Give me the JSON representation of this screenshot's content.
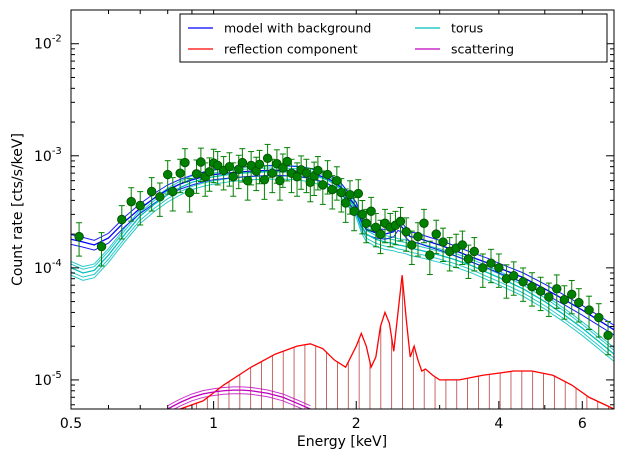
{
  "chart_data": {
    "type": "line",
    "title": "",
    "xlabel": "Energy [keV]",
    "ylabel": "Count rate [cts/s/keV]",
    "x_scale": "log",
    "y_scale": "log",
    "xlim": [
      0.5,
      7.0
    ],
    "ylim": [
      5.5e-06,
      0.02
    ],
    "grid": false,
    "legend": {
      "placement": "top-right",
      "columns": 2
    },
    "x_ticks": [
      {
        "value": 0.5,
        "label": "0.5"
      },
      {
        "value": 1,
        "label": "1"
      },
      {
        "value": 2,
        "label": "2"
      },
      {
        "value": 4,
        "label": "4"
      },
      {
        "value": 6,
        "label": "6"
      }
    ],
    "y_ticks": [
      {
        "value": 1e-05,
        "base": "10",
        "exp": "-5"
      },
      {
        "value": 0.0001,
        "base": "10",
        "exp": "-4"
      },
      {
        "value": 0.001,
        "base": "10",
        "exp": "-3"
      },
      {
        "value": 0.01,
        "base": "10",
        "exp": "-2"
      }
    ],
    "series": [
      {
        "name": "model with background",
        "color": "#0000ff",
        "x": [
          0.5,
          0.53,
          0.56,
          0.6,
          0.65,
          0.7,
          0.75,
          0.8,
          0.85,
          0.9,
          0.95,
          1.0,
          1.1,
          1.2,
          1.3,
          1.4,
          1.5,
          1.6,
          1.7,
          1.75,
          1.8,
          1.85,
          1.9,
          1.95,
          2.0,
          2.05,
          2.1,
          2.2,
          2.3,
          2.4,
          2.45,
          2.5,
          2.55,
          2.6,
          2.7,
          2.8,
          3.0,
          3.2,
          3.5,
          3.8,
          4.0,
          4.5,
          5.0,
          5.5,
          6.0,
          6.5,
          7.0
        ],
        "values": [
          0.00018,
          0.00017,
          0.00016,
          0.000185,
          0.00026,
          0.00034,
          0.00042,
          0.0005,
          0.00056,
          0.00061,
          0.00065,
          0.00068,
          0.00071,
          0.00073,
          0.00074,
          0.00074,
          0.00073,
          0.0007,
          0.00065,
          0.00062,
          0.00058,
          0.00053,
          0.00046,
          0.0004,
          0.00035,
          0.00026,
          0.00022,
          0.000205,
          0.0002,
          0.00021,
          0.00024,
          0.00023,
          0.000205,
          0.00019,
          0.000185,
          0.000175,
          0.00016,
          0.000145,
          0.000125,
          0.00011,
          0.0001,
          8.2e-05,
          6.5e-05,
          5.2e-05,
          4.2e-05,
          3.4e-05,
          2.8e-05
        ]
      },
      {
        "name": "torus",
        "color": "#00bfbf",
        "x": [
          0.5,
          0.53,
          0.56,
          0.6,
          0.65,
          0.7,
          0.75,
          0.8,
          0.85,
          0.9,
          0.95,
          1.0,
          1.1,
          1.2,
          1.3,
          1.4,
          1.5,
          1.6,
          1.7,
          1.75,
          1.8,
          1.85,
          1.9,
          1.95,
          2.0,
          2.05,
          2.1,
          2.2,
          2.3,
          2.4,
          2.45,
          2.5,
          2.55,
          2.6,
          2.7,
          2.8,
          3.0,
          3.2,
          3.5,
          3.8,
          4.0,
          4.5,
          5.0,
          5.5,
          6.0,
          6.5,
          7.0
        ],
        "values": [
          0.0001,
          9e-05,
          9.5e-05,
          0.00013,
          0.0002,
          0.00029,
          0.00037,
          0.00045,
          0.00052,
          0.00058,
          0.00062,
          0.00065,
          0.00069,
          0.00071,
          0.00072,
          0.00072,
          0.00071,
          0.00068,
          0.00063,
          0.0006,
          0.00056,
          0.00051,
          0.00044,
          0.00038,
          0.00033,
          0.00024,
          0.0002,
          0.00018,
          0.00017,
          0.000165,
          0.00016,
          0.000158,
          0.000155,
          0.00015,
          0.000145,
          0.00014,
          0.00013,
          0.00012,
          0.000105,
          9e-05,
          8.2e-05,
          6.5e-05,
          5e-05,
          3.8e-05,
          2.9e-05,
          2.2e-05,
          1.7e-05
        ]
      },
      {
        "name": "reflection component",
        "color": "#ff0000",
        "x": [
          0.85,
          0.95,
          1.05,
          1.2,
          1.35,
          1.5,
          1.6,
          1.7,
          1.8,
          1.9,
          2.0,
          2.05,
          2.1,
          2.15,
          2.2,
          2.25,
          2.3,
          2.35,
          2.4,
          2.45,
          2.5,
          2.55,
          2.6,
          2.65,
          2.7,
          2.75,
          2.8,
          2.9,
          3.0,
          3.3,
          3.7,
          4.0,
          4.3,
          4.7,
          5.2,
          5.7,
          6.2,
          7.0
        ],
        "values": [
          5.5e-06,
          6.5e-06,
          9e-06,
          1.3e-05,
          1.7e-05,
          2e-05,
          2.1e-05,
          1.9e-05,
          1.5e-05,
          1.3e-05,
          2e-05,
          2.6e-05,
          2e-05,
          1.3e-05,
          1.6e-05,
          3e-05,
          4e-05,
          3.2e-05,
          1.8e-05,
          4e-05,
          8.6e-05,
          3.5e-05,
          1.6e-05,
          2e-05,
          1.5e-05,
          1.2e-05,
          1.25e-05,
          1.1e-05,
          1e-05,
          1e-05,
          1.1e-05,
          1.15e-05,
          1.2e-05,
          1.2e-05,
          1.1e-05,
          9e-06,
          7e-06,
          5.5e-06
        ]
      },
      {
        "name": "scattering",
        "color": "#bf00bf",
        "x": [
          0.8,
          0.85,
          0.9,
          0.95,
          1.0,
          1.05,
          1.1,
          1.15,
          1.2,
          1.3,
          1.4,
          1.5,
          1.6
        ],
        "values": [
          5.5e-06,
          6.3e-06,
          7e-06,
          7.5e-06,
          7.8e-06,
          8e-06,
          8.1e-06,
          8.1e-06,
          8e-06,
          7.6e-06,
          7e-06,
          6.2e-06,
          5.5e-06
        ]
      }
    ],
    "data_points": {
      "x": [
        0.52,
        0.58,
        0.64,
        0.67,
        0.7,
        0.74,
        0.77,
        0.8,
        0.82,
        0.85,
        0.87,
        0.89,
        0.92,
        0.94,
        0.96,
        0.98,
        1.0,
        1.02,
        1.05,
        1.08,
        1.1,
        1.13,
        1.15,
        1.18,
        1.2,
        1.23,
        1.25,
        1.28,
        1.3,
        1.33,
        1.36,
        1.38,
        1.4,
        1.43,
        1.46,
        1.5,
        1.53,
        1.57,
        1.6,
        1.63,
        1.66,
        1.7,
        1.74,
        1.78,
        1.82,
        1.86,
        1.9,
        1.94,
        1.98,
        2.02,
        2.06,
        2.1,
        2.15,
        2.2,
        2.25,
        2.3,
        2.36,
        2.42,
        2.48,
        2.55,
        2.62,
        2.7,
        2.78,
        2.86,
        2.95,
        3.05,
        3.15,
        3.25,
        3.35,
        3.45,
        3.55,
        3.7,
        3.85,
        4.0,
        4.15,
        4.3,
        4.5,
        4.7,
        4.9,
        5.1,
        5.3,
        5.5,
        5.7,
        5.9,
        6.2,
        6.5,
        6.8
      ],
      "y": [
        0.00019,
        0.000155,
        0.00027,
        0.00039,
        0.00036,
        0.00048,
        0.00043,
        0.00068,
        0.00048,
        0.0007,
        0.00087,
        0.00047,
        0.00069,
        0.00088,
        0.00065,
        0.00072,
        0.00086,
        0.00082,
        0.00074,
        0.0008,
        0.00065,
        0.00076,
        0.00087,
        0.0006,
        0.00082,
        0.00073,
        0.00084,
        0.00061,
        0.00095,
        0.0007,
        0.00085,
        0.0006,
        0.00078,
        0.00089,
        0.0007,
        0.00065,
        0.00075,
        0.0007,
        0.00058,
        0.00066,
        0.00074,
        0.00055,
        0.00068,
        0.0005,
        0.0006,
        0.00047,
        0.00038,
        0.00045,
        0.00032,
        0.00046,
        0.0003,
        0.00025,
        0.00032,
        0.00023,
        0.0002,
        0.00025,
        0.00023,
        0.00024,
        0.00026,
        0.00021,
        0.00016,
        0.00019,
        0.00025,
        0.00013,
        0.0002,
        0.00017,
        0.00014,
        0.00015,
        0.00016,
        0.00012,
        0.00014,
        0.0001,
        0.00011,
        0.0001,
        8e-05,
        8.5e-05,
        7.5e-05,
        6.8e-05,
        6.2e-05,
        5.5e-05,
        6.5e-05,
        5.2e-05,
        5.8e-05,
        4.9e-05,
        4.2e-05,
        3.6e-05,
        2.5e-05
      ],
      "yerr_rel": 0.33,
      "color": "#008000",
      "marker": "circle"
    },
    "reflection_fill": {
      "color": "#a00000",
      "style": "vertical-hatch"
    }
  }
}
